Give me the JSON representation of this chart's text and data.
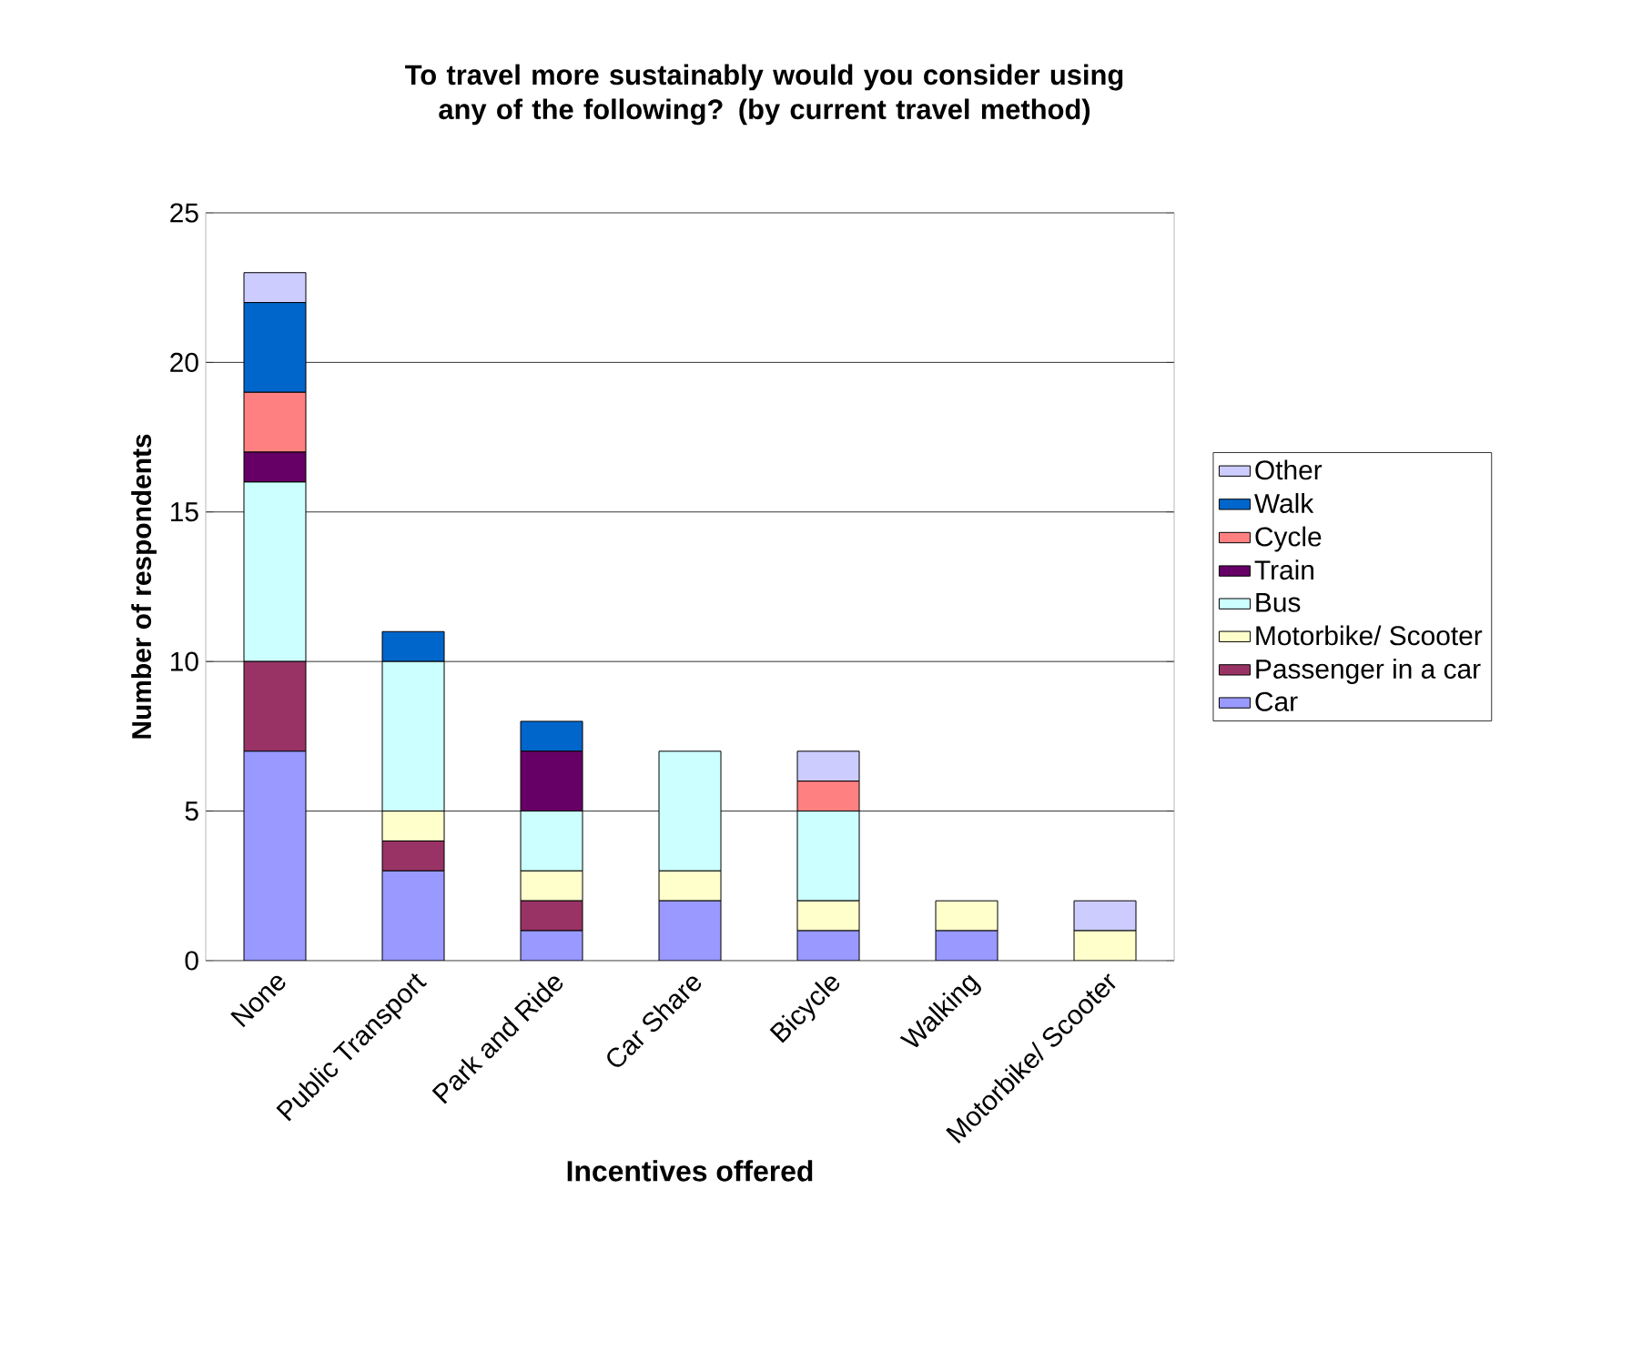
{
  "chart_data": {
    "type": "bar",
    "stacked": true,
    "title": "To travel more sustainably would you consider using any of the following? (by current travel method)",
    "xlabel": "Incentives offered",
    "ylabel": "Number of respondents",
    "categories": [
      "None",
      "Public Transport",
      "Park and Ride",
      "Car Share",
      "Bicycle",
      "Walking",
      "Motorbike/ Scooter"
    ],
    "series": [
      {
        "name": "Car",
        "color": "#9999ff",
        "values": [
          7,
          3,
          1,
          2,
          1,
          1,
          0
        ]
      },
      {
        "name": "Passenger in a car",
        "color": "#993366",
        "values": [
          3,
          1,
          1,
          0,
          0,
          0,
          0
        ]
      },
      {
        "name": "Motorbike/ Scooter",
        "color": "#ffffcc",
        "values": [
          0,
          1,
          1,
          1,
          1,
          1,
          1
        ]
      },
      {
        "name": "Bus",
        "color": "#ccffff",
        "values": [
          6,
          5,
          2,
          4,
          3,
          0,
          0
        ]
      },
      {
        "name": "Train",
        "color": "#660066",
        "values": [
          1,
          0,
          2,
          0,
          0,
          0,
          0
        ]
      },
      {
        "name": "Cycle",
        "color": "#ff8080",
        "values": [
          2,
          0,
          0,
          0,
          1,
          0,
          0
        ]
      },
      {
        "name": "Walk",
        "color": "#0066cc",
        "values": [
          3,
          1,
          1,
          0,
          0,
          0,
          0
        ]
      },
      {
        "name": "Other",
        "color": "#ccccff",
        "values": [
          1,
          0,
          0,
          0,
          1,
          0,
          1
        ]
      }
    ],
    "ylim": [
      0,
      25
    ],
    "yticks": [
      0,
      5,
      10,
      15,
      20,
      25
    ],
    "grid": "y",
    "legend": "right"
  }
}
